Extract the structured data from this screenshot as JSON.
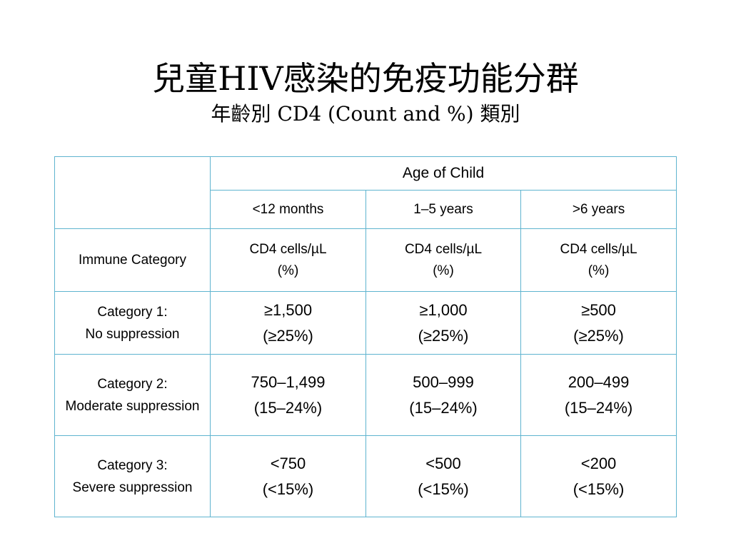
{
  "slide": {
    "title": "兒童HIV感染的免疫功能分群",
    "subtitle": "年齡別 CD4 (Count and %) 類別"
  },
  "table": {
    "age_header": "Age of Child",
    "age_groups": [
      "<12 months",
      "1–5 years",
      ">6 years"
    ],
    "immune_header": "Immune Category",
    "unit_line1": "CD4 cells/µL",
    "unit_line2": "(%)",
    "categories": [
      {
        "title": "Category 1:",
        "description": "No suppression",
        "values": [
          {
            "count": "≥1,500",
            "percent": "(≥25%)"
          },
          {
            "count": "≥1,000",
            "percent": "(≥25%)"
          },
          {
            "count": "≥500",
            "percent": "(≥25%)"
          }
        ]
      },
      {
        "title": "Category 2:",
        "description": "Moderate suppression",
        "values": [
          {
            "count": "750–1,499",
            "percent": "(15–24%)"
          },
          {
            "count": "500–999",
            "percent": "(15–24%)"
          },
          {
            "count": "200–499",
            "percent": "(15–24%)"
          }
        ]
      },
      {
        "title": "Category 3:",
        "description": "Severe suppression",
        "values": [
          {
            "count": "<750",
            "percent": "(<15%)"
          },
          {
            "count": "<500",
            "percent": "(<15%)"
          },
          {
            "count": "<200",
            "percent": "(<15%)"
          }
        ]
      }
    ]
  },
  "colors": {
    "table_border": "#5fb4cf",
    "text": "#000000",
    "background": "#ffffff"
  }
}
